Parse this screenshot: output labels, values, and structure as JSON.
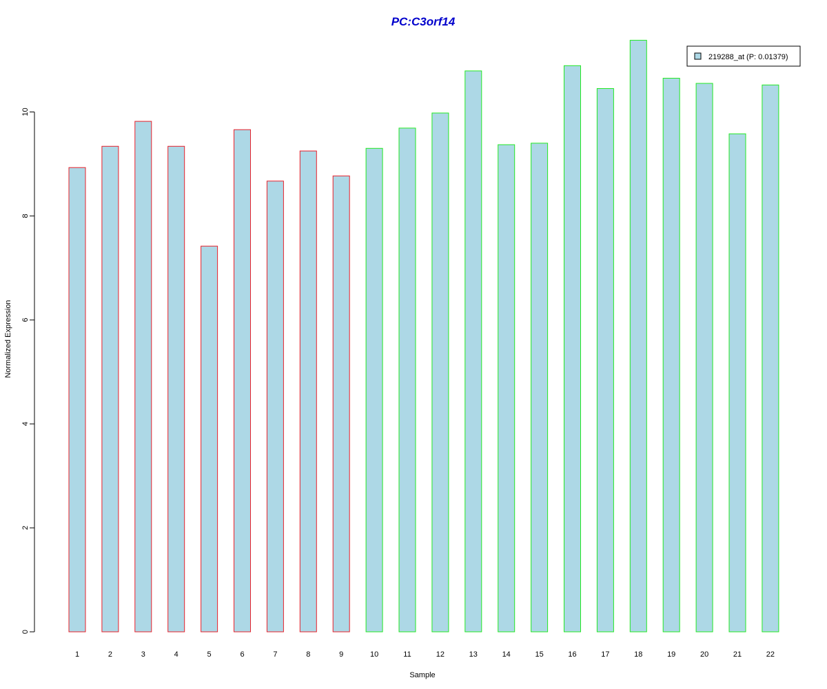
{
  "chart_data": {
    "type": "bar",
    "title": "PC:C3orf14",
    "xlabel": "Sample",
    "ylabel": "Normalized Expression",
    "categories": [
      "1",
      "2",
      "3",
      "4",
      "5",
      "6",
      "7",
      "8",
      "9",
      "10",
      "11",
      "12",
      "13",
      "14",
      "15",
      "16",
      "17",
      "18",
      "19",
      "20",
      "21",
      "22"
    ],
    "series": [
      {
        "name": "219288_at (P: 0.01379)",
        "values": [
          8.93,
          9.34,
          9.82,
          9.34,
          7.42,
          9.66,
          8.67,
          9.25,
          8.77,
          9.3,
          9.69,
          9.98,
          10.79,
          9.37,
          9.4,
          10.89,
          10.45,
          11.38,
          10.65,
          10.55,
          9.58,
          10.52
        ]
      }
    ],
    "groups": [
      {
        "samples": "1-9",
        "border_color": "#e8202a"
      },
      {
        "samples": "10-22",
        "border_color": "#22e822"
      }
    ],
    "bar_fill": "#add8e6",
    "yticks": [
      0,
      2,
      4,
      6,
      8,
      10
    ],
    "ylim": [
      0,
      11.38
    ],
    "legend_position": "top-right",
    "grid": false,
    "colors": {
      "title": "#0000cc",
      "group1_border": "#e8202a",
      "group2_border": "#22e822",
      "fill": "#add8e6"
    }
  }
}
